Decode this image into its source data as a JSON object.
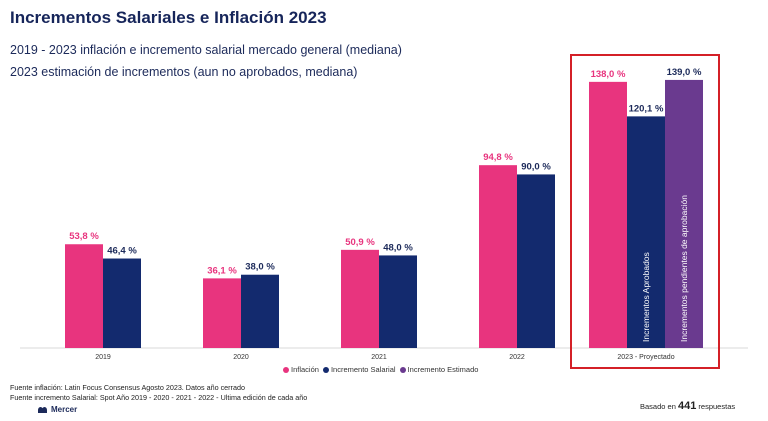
{
  "page": {
    "title": "Incrementos Salariales e Inflación 2023",
    "subtitle1": "2019 - 2023 inflación e incremento salarial mercado general (mediana)",
    "subtitle2": "2023 estimación de incrementos (aun no aprobados, mediana)",
    "source1": "Fuente inflación: Latin Focus Consensus Agosto 2023. Datos año cerrado",
    "source2": "Fuente incremento Salarial: Spot Año 2019 - 2020 - 2021 - 2022 - Ultima edición de cada año",
    "brand": "Mercer",
    "responses_prefix": "Basado en",
    "responses_count": "441",
    "responses_suffix": "respuestas"
  },
  "chart_data": {
    "type": "bar",
    "categories": [
      "2019",
      "2020",
      "2021",
      "2022",
      "2023 - Proyectado"
    ],
    "series": [
      {
        "name": "Inflación",
        "color": "#e8347e",
        "values": [
          53.8,
          36.1,
          50.9,
          94.8,
          138.0
        ],
        "labels": [
          "53,8 %",
          "36,1 %",
          "50,9 %",
          "94,8 %",
          "138,0 %"
        ]
      },
      {
        "name": "Incremento Salarial",
        "color": "#132a6e",
        "values": [
          46.4,
          38.0,
          48.0,
          90.0,
          120.1
        ],
        "labels": [
          "46,4 %",
          "38,0 %",
          "48,0 %",
          "90,0 %",
          "120,1 %"
        ]
      },
      {
        "name": "Incremento Estimado",
        "color": "#6a3a8f",
        "values": [
          null,
          null,
          null,
          null,
          139.0
        ],
        "labels": [
          "",
          "",
          "",
          "",
          "139,0 %"
        ]
      }
    ],
    "bar_annotations": [
      {
        "category": "2023 - Proyectado",
        "series": "Incremento Salarial",
        "text": "Incrementos Aprobados"
      },
      {
        "category": "2023 - Proyectado",
        "series": "Incremento Estimado",
        "text": "Incrementos pendientes de aprobación"
      }
    ],
    "highlight_category": "2023 - Proyectado",
    "highlight_color": "#d42027",
    "ylim": [
      0,
      140
    ],
    "grid": false,
    "legend_position": "bottom"
  }
}
